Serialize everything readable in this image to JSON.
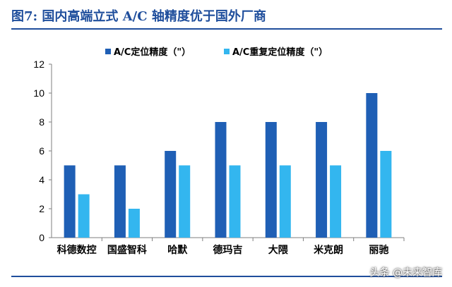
{
  "header": {
    "title": "图7: 国内高端立式 A/C 轴精度优于国外厂商"
  },
  "watermark": "头条 @未来智库",
  "colors": {
    "series1": "#1f5fb5",
    "series2": "#33b6ef",
    "rule": "#1f4e9c"
  },
  "chart_data": {
    "type": "bar",
    "title": "",
    "xlabel": "",
    "ylabel": "",
    "ylim": [
      0,
      12
    ],
    "yticks": [
      0,
      2,
      4,
      6,
      8,
      10,
      12
    ],
    "grid": false,
    "legend": "top",
    "categories": [
      "科德数控",
      "国盛智科",
      "哈默",
      "德玛吉",
      "大隈",
      "米克朗",
      "丽驰"
    ],
    "series": [
      {
        "name": "A/C定位精度（\"）",
        "values": [
          5,
          5,
          6,
          8,
          8,
          8,
          10
        ]
      },
      {
        "name": "A/C重复定位精度（\"）",
        "values": [
          3,
          2,
          5,
          5,
          5,
          5,
          6
        ]
      }
    ]
  }
}
